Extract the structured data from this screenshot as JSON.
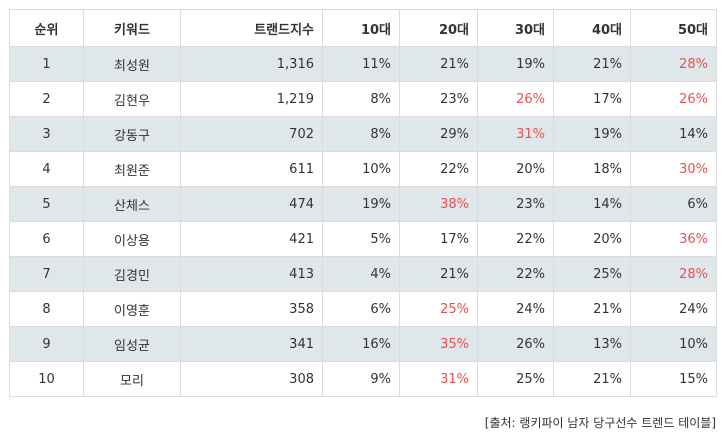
{
  "headers": [
    "순위",
    "키워드",
    "트랜드지수",
    "10대",
    "20대",
    "30대",
    "40대",
    "50대"
  ],
  "rows": [
    {
      "rank": "1",
      "keyword": "최성원",
      "index": "1,316",
      "a10": "11%",
      "a20": "21%",
      "a30": "19%",
      "a40": "21%",
      "a50": "28%",
      "highlight": [
        "a50"
      ]
    },
    {
      "rank": "2",
      "keyword": "김현우",
      "index": "1,219",
      "a10": "8%",
      "a20": "23%",
      "a30": "26%",
      "a40": "17%",
      "a50": "26%",
      "highlight": [
        "a30",
        "a50"
      ]
    },
    {
      "rank": "3",
      "keyword": "강동구",
      "index": "702",
      "a10": "8%",
      "a20": "29%",
      "a30": "31%",
      "a40": "19%",
      "a50": "14%",
      "highlight": [
        "a30"
      ]
    },
    {
      "rank": "4",
      "keyword": "최원준",
      "index": "611",
      "a10": "10%",
      "a20": "22%",
      "a30": "20%",
      "a40": "18%",
      "a50": "30%",
      "highlight": [
        "a50"
      ]
    },
    {
      "rank": "5",
      "keyword": "산체스",
      "index": "474",
      "a10": "19%",
      "a20": "38%",
      "a30": "23%",
      "a40": "14%",
      "a50": "6%",
      "highlight": [
        "a20"
      ]
    },
    {
      "rank": "6",
      "keyword": "이상용",
      "index": "421",
      "a10": "5%",
      "a20": "17%",
      "a30": "22%",
      "a40": "20%",
      "a50": "36%",
      "highlight": [
        "a50"
      ]
    },
    {
      "rank": "7",
      "keyword": "김경민",
      "index": "413",
      "a10": "4%",
      "a20": "21%",
      "a30": "22%",
      "a40": "25%",
      "a50": "28%",
      "highlight": [
        "a50"
      ]
    },
    {
      "rank": "8",
      "keyword": "이영훈",
      "index": "358",
      "a10": "6%",
      "a20": "25%",
      "a30": "24%",
      "a40": "21%",
      "a50": "24%",
      "highlight": [
        "a20"
      ]
    },
    {
      "rank": "9",
      "keyword": "임성균",
      "index": "341",
      "a10": "16%",
      "a20": "35%",
      "a30": "26%",
      "a40": "13%",
      "a50": "10%",
      "highlight": [
        "a20"
      ]
    },
    {
      "rank": "10",
      "keyword": "모리",
      "index": "308",
      "a10": "9%",
      "a20": "31%",
      "a30": "25%",
      "a40": "21%",
      "a50": "15%",
      "highlight": [
        "a20"
      ]
    }
  ],
  "source": "[출처: 랭키파이 남자 당구선수 트렌드 테이블]",
  "colors": {
    "highlight": "#e5524d",
    "stripe": "#dfe7ea",
    "border": "#dcdcdc"
  }
}
